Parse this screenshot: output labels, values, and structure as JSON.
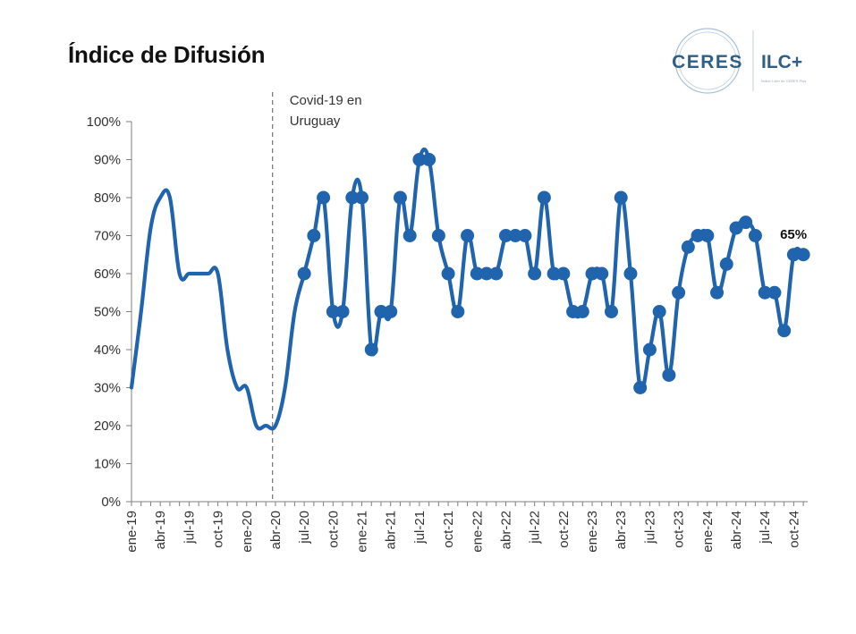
{
  "header": {
    "title": "Índice de Difusión",
    "logo_left": "CERES",
    "logo_right": "ILC+",
    "logo_sub": "Índice Líder de CERES Plus"
  },
  "chart_data": {
    "type": "line",
    "title": "Índice de Difusión",
    "xlabel": "",
    "ylabel": "",
    "ylim": [
      0,
      100
    ],
    "y_ticks": [
      "0%",
      "10%",
      "20%",
      "30%",
      "40%",
      "50%",
      "60%",
      "70%",
      "80%",
      "90%",
      "100%"
    ],
    "x_tick_labels": [
      "ene-19",
      "abr-19",
      "jul-19",
      "oct-19",
      "ene-20",
      "abr-20",
      "jul-20",
      "oct-20",
      "ene-21",
      "abr-21",
      "jul-21",
      "oct-21",
      "ene-22",
      "abr-22",
      "jul-22",
      "oct-22",
      "ene-23",
      "abr-23",
      "jul-23",
      "oct-23",
      "ene-24",
      "abr-24",
      "jul-24",
      "oct-24"
    ],
    "grid": false,
    "color": "#1f64ad",
    "annotation": {
      "text_line1": "Covid-19 en",
      "text_line2": "Uruguay",
      "x_index": 14.7
    },
    "end_label": "65%",
    "marker_start_index": 18,
    "series": [
      {
        "values": [
          30,
          50,
          72,
          80,
          80,
          60,
          60,
          60,
          60,
          60,
          40,
          30,
          30,
          20,
          20,
          20,
          30,
          50,
          60,
          70,
          80,
          50,
          50,
          80,
          80,
          40,
          50,
          50,
          80,
          70,
          90,
          90,
          70,
          60,
          50,
          70,
          60,
          60,
          60,
          70,
          70,
          70,
          60,
          80,
          60,
          60,
          50,
          50,
          60,
          60,
          50,
          80,
          60,
          30,
          40,
          50,
          33.3,
          55,
          67,
          70,
          70,
          55,
          62.5,
          72,
          73.5,
          70,
          55,
          55,
          45,
          65,
          65
        ]
      }
    ]
  }
}
